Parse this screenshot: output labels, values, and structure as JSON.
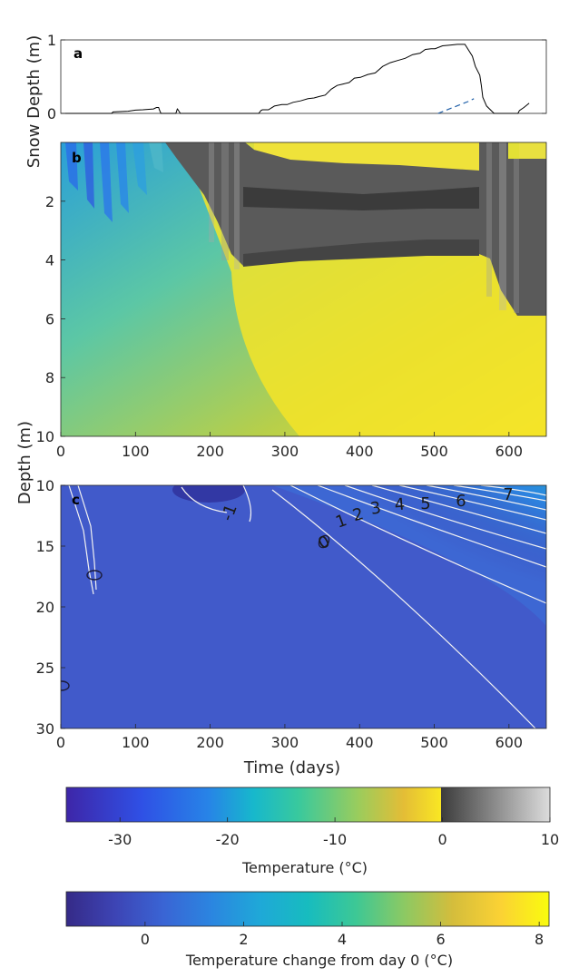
{
  "chart_data": [
    {
      "type": "line",
      "panel_label": "a",
      "ylabel": "Snow Depth (m)",
      "xlim": [
        0,
        650
      ],
      "ylim": [
        0,
        1
      ],
      "yticks": [
        0,
        1
      ],
      "series": [
        {
          "style": "solid",
          "color": "#000000",
          "x": [
            0,
            68,
            70,
            90,
            100,
            110,
            118,
            124,
            128,
            131,
            132,
            134,
            150,
            154,
            156,
            157,
            160,
            265,
            268,
            270,
            278,
            286,
            296,
            303,
            311,
            321,
            331,
            339,
            346,
            354,
            362,
            370,
            378,
            386,
            393,
            401,
            411,
            421,
            431,
            441,
            451,
            461,
            471,
            481,
            488,
            496,
            501,
            511,
            521,
            531,
            541,
            551,
            555,
            561,
            563,
            565,
            570,
            580,
            586,
            593,
            600,
            606,
            612,
            614,
            620,
            627
          ],
          "y": [
            0,
            0,
            0.02,
            0.03,
            0.045,
            0.05,
            0.055,
            0.06,
            0.08,
            0.08,
            0.05,
            0,
            0,
            0.0,
            0.06,
            0.05,
            0,
            0,
            0.04,
            0.05,
            0.05,
            0.1,
            0.12,
            0.12,
            0.15,
            0.17,
            0.2,
            0.21,
            0.23,
            0.25,
            0.33,
            0.38,
            0.4,
            0.42,
            0.48,
            0.49,
            0.53,
            0.55,
            0.64,
            0.69,
            0.72,
            0.75,
            0.8,
            0.82,
            0.87,
            0.88,
            0.88,
            0.92,
            0.93,
            0.94,
            0.94,
            0.78,
            0.64,
            0.52,
            0.38,
            0.22,
            0.1,
            0.0,
            0,
            0,
            0,
            0,
            0,
            0.04,
            0.08,
            0.14
          ]
        },
        {
          "style": "dashed",
          "color": "#1f5fa8",
          "x": [
            505,
            515,
            525,
            535,
            545,
            553
          ],
          "y": [
            0,
            0.04,
            0.08,
            0.12,
            0.16,
            0.2
          ]
        }
      ]
    },
    {
      "type": "heatmap",
      "panel_label": "b",
      "ylabel": "Depth (m)",
      "xlim": [
        0,
        650
      ],
      "ylim": [
        10,
        0
      ],
      "xticks": [
        0,
        100,
        200,
        300,
        400,
        500,
        600
      ],
      "yticks": [
        2,
        4,
        6,
        8,
        10
      ],
      "colorbar": "temperature"
    },
    {
      "type": "heatmap",
      "panel_label": "c",
      "xlabel": "Time (days)",
      "xlim": [
        0,
        650
      ],
      "ylim": [
        30,
        10
      ],
      "xticks": [
        0,
        100,
        200,
        300,
        400,
        500,
        600
      ],
      "yticks": [
        10,
        15,
        20,
        25,
        30
      ],
      "contour_labels": [
        "-1",
        "0",
        "1",
        "2",
        "3",
        "4",
        "5",
        "6",
        "7",
        "0",
        "0",
        "0"
      ],
      "colorbar": "temperature_change"
    }
  ],
  "colorbars": {
    "temperature": {
      "label": "Temperature (°C)",
      "min": -35,
      "max": 10,
      "ticks": [
        "-30",
        "-20",
        "-10",
        "0",
        "10"
      ],
      "tick_values": [
        -30,
        -20,
        -10,
        0,
        10
      ],
      "colors_below_zero": [
        "#3e26a8",
        "#2f50e5",
        "#2784e7",
        "#17b8cc",
        "#39c99d",
        "#9bcc5c",
        "#e4bd36",
        "#f9e723"
      ],
      "colors_above_zero": [
        "#3c3c3c",
        "#dcdcdc"
      ]
    },
    "temperature_change": {
      "label": "Temperature change from day 0 (°C)",
      "min": -1.6,
      "max": 8.2,
      "ticks": [
        "0",
        "2",
        "4",
        "6",
        "8"
      ],
      "tick_values": [
        0,
        2,
        4,
        6,
        8
      ],
      "colors": [
        "#352a87",
        "#3d44b4",
        "#3a64d4",
        "#2b85e0",
        "#1fa8d8",
        "#17bcbf",
        "#3dc895",
        "#8cc963",
        "#d4bd3c",
        "#fbd234",
        "#f9fb0e"
      ]
    }
  }
}
